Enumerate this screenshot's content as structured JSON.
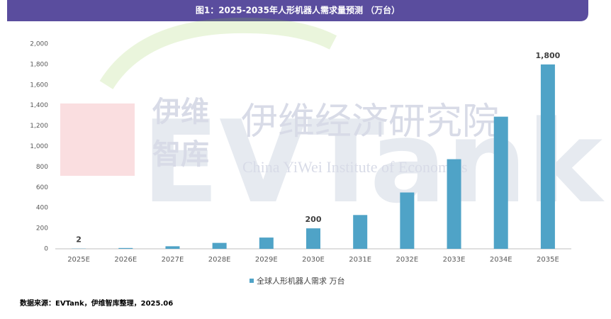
{
  "chart_data": {
    "type": "bar",
    "title": "图1：2025-2035年人形机器人需求量预测 （万台）",
    "categories": [
      "2025E",
      "2026E",
      "2027E",
      "2028E",
      "2029E",
      "2030E",
      "2031E",
      "2032E",
      "2033E",
      "2034E",
      "2035E"
    ],
    "series": [
      {
        "name": "全球人形机器人需求 万台",
        "color": "#4fa3c7",
        "values": [
          2,
          8,
          25,
          58,
          110,
          200,
          330,
          550,
          875,
          1290,
          1800
        ],
        "value_labels": [
          "2",
          null,
          null,
          null,
          null,
          "200",
          null,
          null,
          null,
          null,
          "1,800"
        ]
      }
    ],
    "ylim": [
      0,
      2000
    ],
    "yticks": [
      0,
      200,
      400,
      600,
      800,
      {
        "value": 1000,
        "label": "1,000"
      },
      {
        "value": 1200,
        "label": "1,200"
      },
      {
        "value": 1400,
        "label": "1,400"
      },
      {
        "value": 1600,
        "label": "1,600"
      },
      {
        "value": 1800,
        "label": "1,800"
      },
      {
        "value": 2000,
        "label": "2,000"
      }
    ],
    "grid": false,
    "source": "数据来源：EVTank，伊维智库整理，2025.06"
  },
  "watermark": {
    "brand_top": "伊维",
    "brand_bottom": "智库",
    "institute": "伊维经济研究院",
    "institute_en": "China YiWei Institute of Economics",
    "logo": "EVTank"
  }
}
